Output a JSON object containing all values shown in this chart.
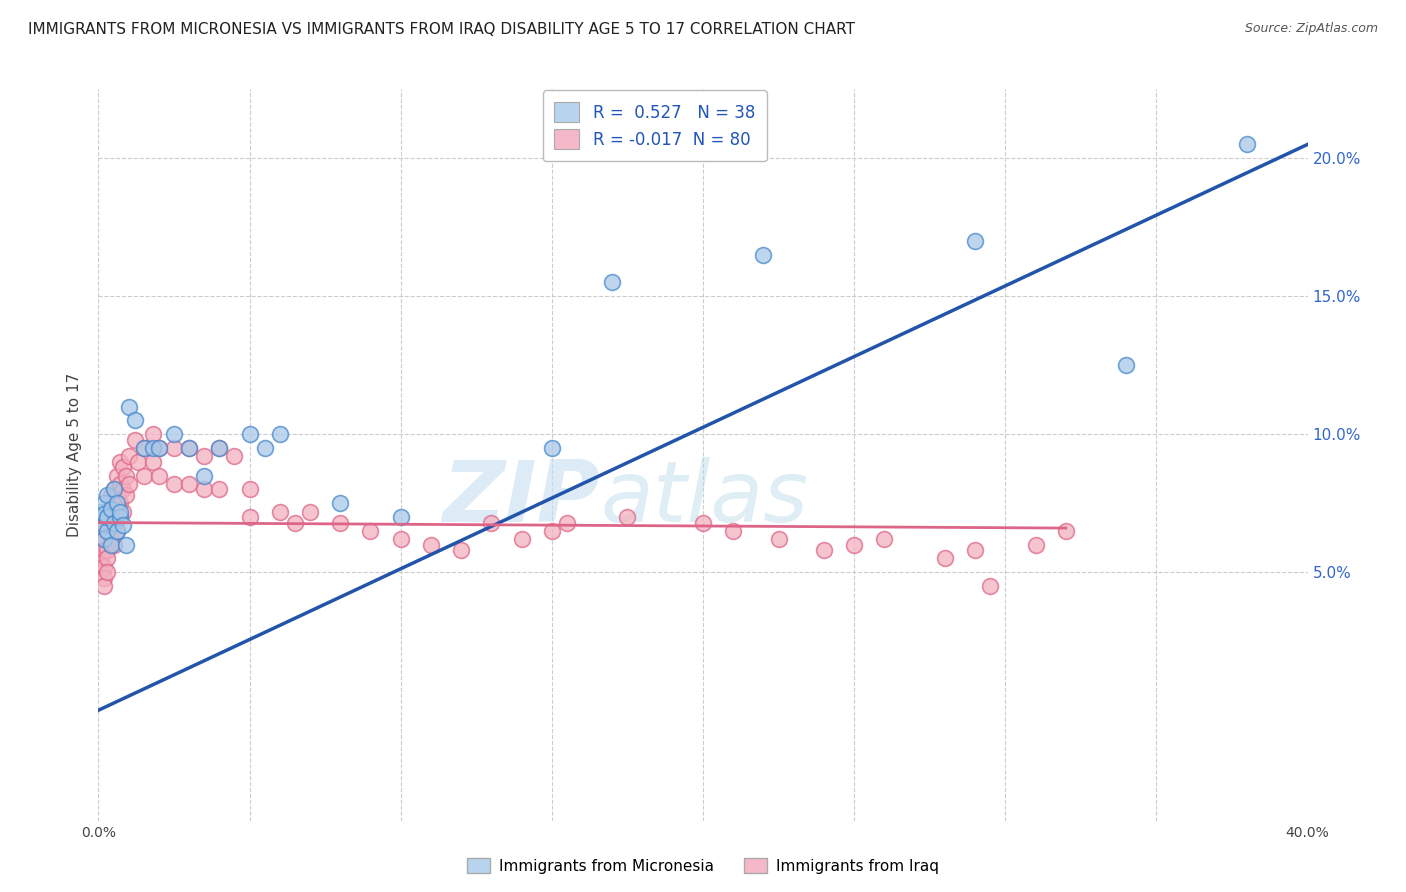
{
  "title": "IMMIGRANTS FROM MICRONESIA VS IMMIGRANTS FROM IRAQ DISABILITY AGE 5 TO 17 CORRELATION CHART",
  "source": "Source: ZipAtlas.com",
  "ylabel": "Disability Age 5 to 17",
  "xlim": [
    0.0,
    0.4
  ],
  "ylim": [
    -0.04,
    0.225
  ],
  "xticks": [
    0.0,
    0.05,
    0.1,
    0.15,
    0.2,
    0.25,
    0.3,
    0.35,
    0.4
  ],
  "xticklabels": [
    "0.0%",
    "",
    "",
    "",
    "",
    "",
    "",
    "",
    "40.0%"
  ],
  "yticks": [
    0.05,
    0.1,
    0.15,
    0.2
  ],
  "yticklabels": [
    "5.0%",
    "10.0%",
    "15.0%",
    "20.0%"
  ],
  "R_blue": 0.527,
  "N_blue": 38,
  "R_pink": -0.017,
  "N_pink": 80,
  "color_blue": "#a8c8e8",
  "color_pink": "#f4b0c0",
  "edge_blue": "#4488cc",
  "edge_pink": "#dd6688",
  "line_blue": "#2255aa",
  "line_pink": "#dd6688",
  "watermark_zip": "ZIP",
  "watermark_atlas": "atlas",
  "grid_color": "#cccccc",
  "legend_face_blue": "#b8d4ee",
  "legend_face_pink": "#f4b8c8",
  "blue_scatter_x": [
    0.001,
    0.001,
    0.002,
    0.002,
    0.002,
    0.003,
    0.003,
    0.003,
    0.004,
    0.004,
    0.005,
    0.005,
    0.006,
    0.006,
    0.007,
    0.007,
    0.008,
    0.009,
    0.01,
    0.012,
    0.015,
    0.018,
    0.02,
    0.025,
    0.03,
    0.035,
    0.04,
    0.05,
    0.055,
    0.06,
    0.08,
    0.1,
    0.15,
    0.17,
    0.22,
    0.29,
    0.34,
    0.38
  ],
  "blue_scatter_y": [
    0.068,
    0.072,
    0.062,
    0.075,
    0.071,
    0.065,
    0.07,
    0.078,
    0.06,
    0.073,
    0.068,
    0.08,
    0.075,
    0.065,
    0.07,
    0.072,
    0.067,
    0.06,
    0.11,
    0.105,
    0.095,
    0.095,
    0.095,
    0.1,
    0.095,
    0.085,
    0.095,
    0.1,
    0.095,
    0.1,
    0.075,
    0.07,
    0.095,
    0.155,
    0.165,
    0.17,
    0.125,
    0.205
  ],
  "pink_scatter_x": [
    0.001,
    0.001,
    0.001,
    0.002,
    0.002,
    0.002,
    0.002,
    0.002,
    0.002,
    0.003,
    0.003,
    0.003,
    0.003,
    0.003,
    0.003,
    0.004,
    0.004,
    0.004,
    0.004,
    0.005,
    0.005,
    0.005,
    0.005,
    0.006,
    0.006,
    0.006,
    0.006,
    0.007,
    0.007,
    0.007,
    0.008,
    0.008,
    0.008,
    0.009,
    0.009,
    0.01,
    0.01,
    0.012,
    0.013,
    0.015,
    0.015,
    0.018,
    0.018,
    0.02,
    0.02,
    0.025,
    0.025,
    0.03,
    0.03,
    0.035,
    0.035,
    0.04,
    0.04,
    0.045,
    0.05,
    0.05,
    0.06,
    0.065,
    0.07,
    0.08,
    0.09,
    0.1,
    0.11,
    0.12,
    0.13,
    0.14,
    0.15,
    0.155,
    0.175,
    0.2,
    0.21,
    0.225,
    0.24,
    0.25,
    0.26,
    0.28,
    0.29,
    0.295,
    0.31,
    0.32
  ],
  "pink_scatter_y": [
    0.06,
    0.055,
    0.05,
    0.068,
    0.062,
    0.058,
    0.052,
    0.048,
    0.045,
    0.072,
    0.068,
    0.065,
    0.058,
    0.055,
    0.05,
    0.078,
    0.072,
    0.068,
    0.062,
    0.08,
    0.075,
    0.07,
    0.06,
    0.085,
    0.078,
    0.07,
    0.065,
    0.09,
    0.082,
    0.075,
    0.088,
    0.08,
    0.072,
    0.085,
    0.078,
    0.092,
    0.082,
    0.098,
    0.09,
    0.095,
    0.085,
    0.1,
    0.09,
    0.095,
    0.085,
    0.095,
    0.082,
    0.095,
    0.082,
    0.092,
    0.08,
    0.095,
    0.08,
    0.092,
    0.08,
    0.07,
    0.072,
    0.068,
    0.072,
    0.068,
    0.065,
    0.062,
    0.06,
    0.058,
    0.068,
    0.062,
    0.065,
    0.068,
    0.07,
    0.068,
    0.065,
    0.062,
    0.058,
    0.06,
    0.062,
    0.055,
    0.058,
    0.045,
    0.06,
    0.065
  ],
  "blue_line_x0": 0.0,
  "blue_line_y0": 0.0,
  "blue_line_x1": 0.4,
  "blue_line_y1": 0.205,
  "pink_line_x0": 0.0,
  "pink_line_y0": 0.068,
  "pink_line_x1": 0.32,
  "pink_line_y1": 0.066
}
